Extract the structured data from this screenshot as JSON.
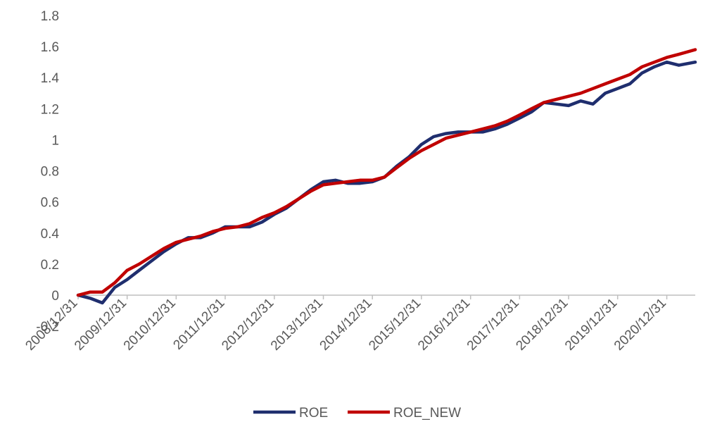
{
  "chart_data": {
    "type": "line",
    "title": "",
    "xlabel": "",
    "ylabel": "",
    "ylim": [
      -0.2,
      1.8
    ],
    "y_ticks": [
      -0.2,
      0,
      0.2,
      0.4,
      0.6,
      0.8,
      1,
      1.2,
      1.4,
      1.6,
      1.8
    ],
    "y_tick_labels": [
      "-0.2",
      "0",
      "0.2",
      "0.4",
      "0.6",
      "0.8",
      "1",
      "1.2",
      "1.4",
      "1.6",
      "1.8"
    ],
    "x_tick_labels": [
      "2008/12/31",
      "2009/12/31",
      "2010/12/31",
      "2011/12/31",
      "2012/12/31",
      "2013/12/31",
      "2014/12/31",
      "2015/12/31",
      "2016/12/31",
      "2017/12/31",
      "2018/12/31",
      "2019/12/31",
      "2020/12/31"
    ],
    "x_end": "2021/07/31",
    "grid": false,
    "legend_position": "bottom",
    "x": [
      "2008/12/31",
      "2009/03/31",
      "2009/06/30",
      "2009/09/30",
      "2009/12/31",
      "2010/03/31",
      "2010/06/30",
      "2010/09/30",
      "2010/12/31",
      "2011/03/31",
      "2011/06/30",
      "2011/09/30",
      "2011/12/31",
      "2012/03/31",
      "2012/06/30",
      "2012/09/30",
      "2012/12/31",
      "2013/03/31",
      "2013/06/30",
      "2013/09/30",
      "2013/12/31",
      "2014/03/31",
      "2014/06/30",
      "2014/09/30",
      "2014/12/31",
      "2015/03/31",
      "2015/06/30",
      "2015/09/30",
      "2015/12/31",
      "2016/03/31",
      "2016/06/30",
      "2016/09/30",
      "2016/12/31",
      "2017/03/31",
      "2017/06/30",
      "2017/09/30",
      "2017/12/31",
      "2018/03/31",
      "2018/06/30",
      "2018/09/30",
      "2018/12/31",
      "2019/03/31",
      "2019/06/30",
      "2019/09/30",
      "2019/12/31",
      "2020/03/31",
      "2020/06/30",
      "2020/09/30",
      "2020/12/31",
      "2021/03/31",
      "2021/07/31"
    ],
    "series": [
      {
        "name": "ROE",
        "color": "#1f2e6e",
        "values": [
          0.0,
          -0.02,
          -0.05,
          0.05,
          0.1,
          0.16,
          0.22,
          0.28,
          0.33,
          0.37,
          0.37,
          0.4,
          0.44,
          0.44,
          0.44,
          0.47,
          0.52,
          0.56,
          0.62,
          0.68,
          0.73,
          0.74,
          0.72,
          0.72,
          0.73,
          0.76,
          0.83,
          0.89,
          0.97,
          1.02,
          1.04,
          1.05,
          1.05,
          1.05,
          1.07,
          1.1,
          1.14,
          1.18,
          1.24,
          1.23,
          1.22,
          1.25,
          1.23,
          1.3,
          1.33,
          1.36,
          1.43,
          1.47,
          1.5,
          1.48,
          1.5
        ]
      },
      {
        "name": "ROE_NEW",
        "color": "#c00000",
        "values": [
          0.0,
          0.02,
          0.02,
          0.08,
          0.16,
          0.2,
          0.25,
          0.3,
          0.34,
          0.36,
          0.38,
          0.41,
          0.43,
          0.44,
          0.46,
          0.5,
          0.53,
          0.57,
          0.62,
          0.67,
          0.71,
          0.72,
          0.73,
          0.74,
          0.74,
          0.76,
          0.82,
          0.88,
          0.93,
          0.97,
          1.01,
          1.03,
          1.05,
          1.07,
          1.09,
          1.12,
          1.16,
          1.2,
          1.24,
          1.26,
          1.28,
          1.3,
          1.33,
          1.36,
          1.39,
          1.42,
          1.47,
          1.5,
          1.53,
          1.55,
          1.58
        ]
      }
    ]
  }
}
